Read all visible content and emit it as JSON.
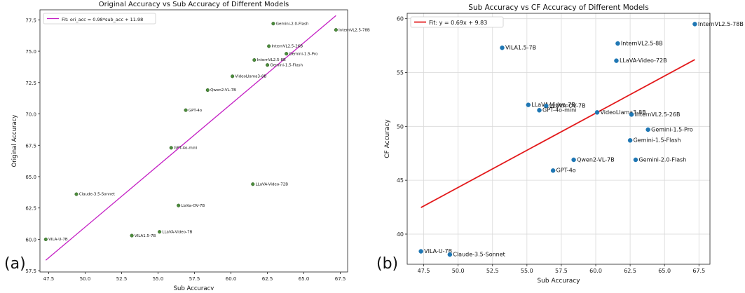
{
  "chart_data": [
    {
      "type": "scatter",
      "panel_label": "(a)",
      "title": "Original Accuracy vs Sub Accuracy of Different Models",
      "xlabel": "Sub Accuracy",
      "ylabel": "Original Accuracy",
      "xlim": [
        46.9,
        68.0
      ],
      "ylim": [
        57.4,
        78.3
      ],
      "xticks": [
        47.5,
        50.0,
        52.5,
        55.0,
        57.5,
        60.0,
        62.5,
        65.0,
        67.5
      ],
      "yticks": [
        57.5,
        60.0,
        62.5,
        65.0,
        67.5,
        70.0,
        72.5,
        75.0,
        77.5
      ],
      "tick_labels_x": [
        "47.5",
        "50.0",
        "52.5",
        "55.0",
        "57.5",
        "60.0",
        "62.5",
        "65.0",
        "67.5"
      ],
      "tick_labels_y": [
        "57.5",
        "60.0",
        "62.5",
        "65.0",
        "67.5",
        "70.0",
        "72.5",
        "75.0",
        "77.5"
      ],
      "grid": false,
      "legend_position": "top-left",
      "fit_label": "Fit: ori_acc = 0.98*sub_acc + 11.98",
      "fit": {
        "slope": 0.98,
        "intercept": 11.98,
        "x_range": [
          47.3,
          67.2
        ]
      },
      "point_color": "#4c8c3c",
      "fit_color": "#c41fc4",
      "points": [
        {
          "label": "VILA-U-7B",
          "x": 47.3,
          "y": 60.0
        },
        {
          "label": "Claude-3.5-Sonnet",
          "x": 49.4,
          "y": 63.6
        },
        {
          "label": "VILA1.5-7B",
          "x": 53.2,
          "y": 60.3
        },
        {
          "label": "LLaVA-Video-7B",
          "x": 55.1,
          "y": 60.6
        },
        {
          "label": "LlaVa-OV-7B",
          "x": 56.4,
          "y": 62.7
        },
        {
          "label": "GPT-4o-mini",
          "x": 55.9,
          "y": 67.3
        },
        {
          "label": "GPT-4o",
          "x": 56.9,
          "y": 70.3
        },
        {
          "label": "Qwen2-VL-7B",
          "x": 58.4,
          "y": 71.9
        },
        {
          "label": "VideoLlama3-8B",
          "x": 60.1,
          "y": 73.0
        },
        {
          "label": "InternVL2.5-8B",
          "x": 61.6,
          "y": 74.3
        },
        {
          "label": "InternVL2.5-26B",
          "x": 62.6,
          "y": 75.4
        },
        {
          "label": "Gemini-1.5-Flash",
          "x": 62.5,
          "y": 73.9
        },
        {
          "label": "Gemini-1.5-Pro",
          "x": 63.8,
          "y": 74.8
        },
        {
          "label": "Gemini-2.0-Flash",
          "x": 62.9,
          "y": 77.2
        },
        {
          "label": "InternVL2.5-78B",
          "x": 67.2,
          "y": 76.7
        },
        {
          "label": "LLaVA-Video-72B",
          "x": 61.5,
          "y": 64.4
        }
      ]
    },
    {
      "type": "scatter",
      "panel_label": "(b)",
      "title": "Sub Accuracy vs CF Accuracy of Different Models",
      "xlabel": "Sub Accuracy",
      "ylabel": "CF Accuracy",
      "xlim": [
        46.3,
        68.3
      ],
      "ylim": [
        37.2,
        60.5
      ],
      "xticks": [
        47.5,
        50.0,
        52.5,
        55.0,
        57.5,
        60.0,
        62.5,
        65.0,
        67.5
      ],
      "yticks": [
        40,
        45,
        50,
        55,
        60
      ],
      "tick_labels_x": [
        "47.5",
        "50.0",
        "52.5",
        "55.0",
        "57.5",
        "60.0",
        "62.5",
        "65.0",
        "67.5"
      ],
      "tick_labels_y": [
        "40",
        "45",
        "50",
        "55",
        "60"
      ],
      "grid": true,
      "legend_position": "top-left",
      "fit_label": "Fit: y = 0.69x + 9.83",
      "fit": {
        "slope": 0.69,
        "intercept": 9.83,
        "x_range": [
          47.3,
          67.2
        ]
      },
      "point_color": "#1f77b4",
      "fit_color": "#e31a1c",
      "points": [
        {
          "label": "VILA-U-7B",
          "x": 47.3,
          "y": 38.4
        },
        {
          "label": "Claude-3.5-Sonnet",
          "x": 49.4,
          "y": 38.1
        },
        {
          "label": "VILA1.5-7B",
          "x": 53.2,
          "y": 57.3
        },
        {
          "label": "LLaVA-Video-7B",
          "x": 55.1,
          "y": 52.0
        },
        {
          "label": "LLaVA-OV-7B",
          "x": 56.4,
          "y": 51.9
        },
        {
          "label": "GPT-4o-mini",
          "x": 55.9,
          "y": 51.5
        },
        {
          "label": "GPT-4o",
          "x": 56.9,
          "y": 45.9
        },
        {
          "label": "Qwen2-VL-7B",
          "x": 58.4,
          "y": 46.9
        },
        {
          "label": "VideoLlama3-8B",
          "x": 60.1,
          "y": 51.3
        },
        {
          "label": "InternVL2.5-8B",
          "x": 61.6,
          "y": 57.7
        },
        {
          "label": "InternVL2.5-26B",
          "x": 62.6,
          "y": 51.1
        },
        {
          "label": "Gemini-1.5-Flash",
          "x": 62.5,
          "y": 48.7
        },
        {
          "label": "Gemini-1.5-Pro",
          "x": 63.8,
          "y": 49.7
        },
        {
          "label": "Gemini-2.0-Flash",
          "x": 62.9,
          "y": 46.9
        },
        {
          "label": "InternVL2.5-78B",
          "x": 67.2,
          "y": 59.5
        },
        {
          "label": "LLaVA-Video-72B",
          "x": 61.5,
          "y": 56.1
        }
      ]
    }
  ]
}
